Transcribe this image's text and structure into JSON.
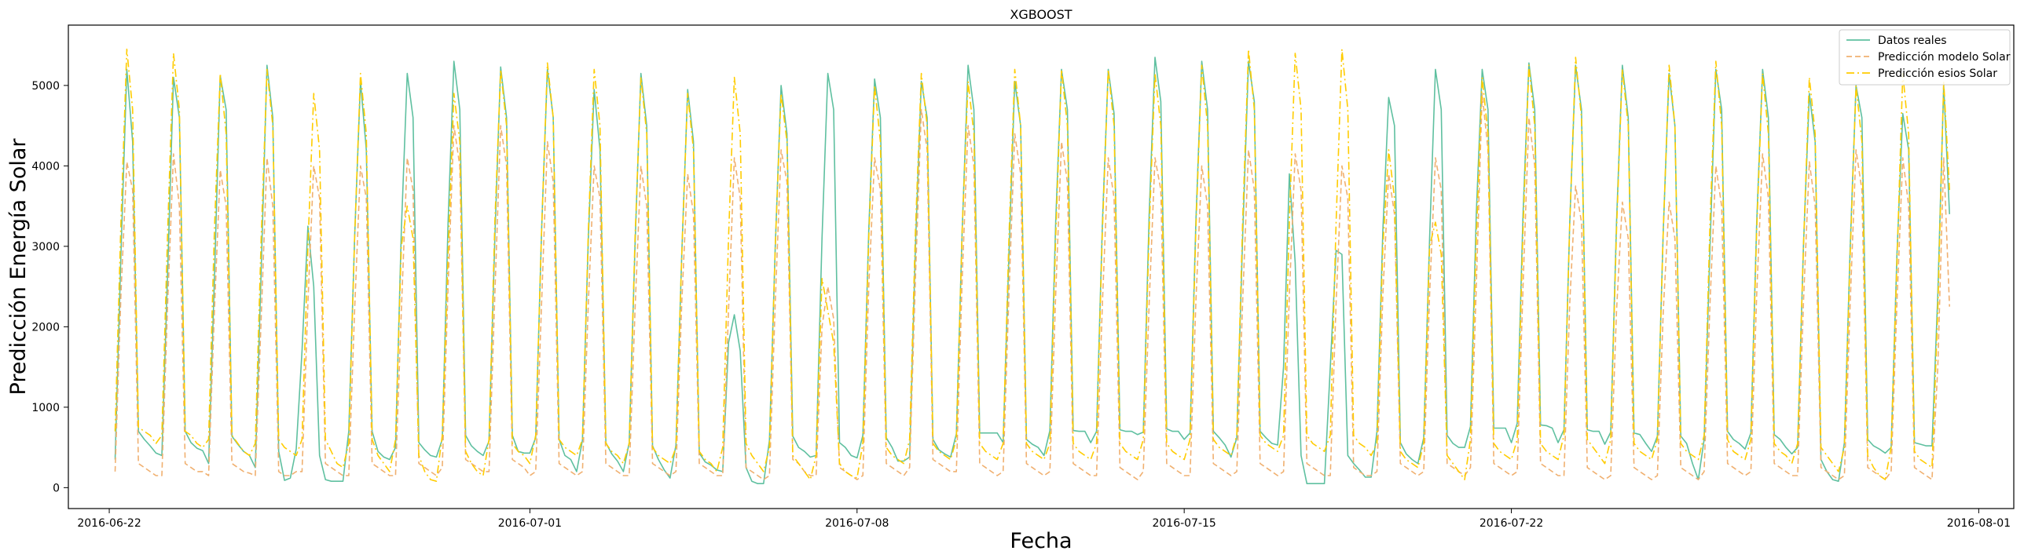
{
  "chart_data": {
    "type": "line",
    "title": "XGBOOST",
    "xlabel": "Fecha",
    "ylabel": "Predicción Energía Solar",
    "x_start": "2016-06-22T03:00",
    "x_step_hours": 3,
    "x_ticks": [
      "2016-06-22",
      "2016-07-01",
      "2016-07-08",
      "2016-07-15",
      "2016-07-22",
      "2016-08-01"
    ],
    "xlim": [
      "2016-06-21T03:00",
      "2016-08-01T18:00"
    ],
    "ylim": [
      -260,
      5750
    ],
    "y_ticks": [
      0,
      1000,
      2000,
      3000,
      4000,
      5000
    ],
    "legend_position": "top-right",
    "grid": false,
    "series": [
      {
        "name": "Datos reales",
        "color": "#5fc0a0",
        "dash": "solid",
        "values": [
          350,
          2900,
          5200,
          4300,
          700,
          600,
          520,
          430,
          400,
          2700,
          5100,
          4600,
          700,
          560,
          490,
          460,
          300,
          2600,
          5120,
          4700,
          640,
          540,
          450,
          400,
          250,
          2700,
          5250,
          4600,
          450,
          90,
          120,
          480,
          1700,
          3250,
          2500,
          400,
          100,
          80,
          80,
          80,
          700,
          3100,
          5050,
          4200,
          700,
          450,
          380,
          350,
          500,
          3200,
          5150,
          4600,
          560,
          470,
          400,
          380,
          600,
          3300,
          5300,
          4700,
          650,
          520,
          450,
          400,
          580,
          3100,
          5230,
          4600,
          650,
          450,
          430,
          430,
          620,
          3200,
          5200,
          4600,
          600,
          400,
          350,
          200,
          590,
          3100,
          4950,
          4200,
          560,
          420,
          330,
          200,
          560,
          3000,
          5150,
          4500,
          520,
          350,
          220,
          120,
          530,
          2900,
          4950,
          4300,
          430,
          320,
          280,
          220,
          200,
          1800,
          2150,
          1700,
          250,
          80,
          50,
          50,
          590,
          3000,
          5000,
          4400,
          640,
          500,
          450,
          380,
          400,
          3100,
          5150,
          4700,
          560,
          500,
          400,
          370,
          650,
          3200,
          5080,
          4600,
          620,
          500,
          330,
          330,
          380,
          3000,
          5050,
          4600,
          600,
          470,
          420,
          380,
          670,
          3200,
          5250,
          4700,
          680,
          680,
          680,
          680,
          560,
          2900,
          5050,
          4500,
          600,
          540,
          500,
          400,
          710,
          3300,
          5200,
          4700,
          710,
          700,
          700,
          560,
          700,
          3300,
          5200,
          4650,
          720,
          700,
          700,
          660,
          690,
          3400,
          5350,
          4800,
          730,
          700,
          700,
          600,
          680,
          3300,
          5300,
          4700,
          700,
          620,
          530,
          380,
          620,
          3100,
          5300,
          4800,
          700,
          620,
          550,
          530,
          1500,
          3900,
          2800,
          400,
          50,
          50,
          50,
          50,
          1500,
          2950,
          2900,
          400,
          300,
          220,
          130,
          130,
          700,
          3200,
          4850,
          4500,
          560,
          420,
          350,
          300,
          620,
          3100,
          5200,
          4700,
          650,
          550,
          500,
          500,
          760,
          3400,
          5200,
          4700,
          740,
          740,
          740,
          560,
          800,
          3400,
          5280,
          4700,
          780,
          770,
          740,
          560,
          720,
          3300,
          5250,
          4700,
          720,
          700,
          700,
          540,
          690,
          3300,
          5250,
          4600,
          680,
          660,
          550,
          450,
          640,
          3200,
          5150,
          4500,
          640,
          550,
          300,
          100,
          600,
          3000,
          5200,
          4700,
          700,
          600,
          550,
          480,
          680,
          3300,
          5200,
          4600,
          660,
          600,
          500,
          420,
          500,
          3000,
          4900,
          4300,
          350,
          200,
          100,
          80,
          560,
          3000,
          5000,
          4600,
          600,
          520,
          480,
          430,
          500,
          2900,
          4650,
          4200,
          560,
          540,
          520,
          520,
          2400,
          5000,
          3400
        ]
      },
      {
        "name": "Predicción modelo Solar",
        "color": "#f0b070",
        "dash": "dashed",
        "values": [
          200,
          2400,
          4050,
          3700,
          300,
          250,
          200,
          150,
          150,
          2300,
          4150,
          3500,
          300,
          250,
          200,
          200,
          150,
          2200,
          3950,
          3500,
          300,
          250,
          200,
          180,
          150,
          2100,
          4100,
          3500,
          200,
          150,
          150,
          200,
          200,
          2300,
          4000,
          3600,
          300,
          250,
          200,
          150,
          150,
          2200,
          4000,
          3600,
          300,
          250,
          200,
          150,
          150,
          2200,
          4100,
          3700,
          300,
          250,
          200,
          150,
          250,
          2500,
          4500,
          4000,
          350,
          300,
          250,
          200,
          200,
          2400,
          4500,
          4000,
          350,
          300,
          250,
          150,
          200,
          2300,
          4300,
          3800,
          300,
          250,
          200,
          150,
          200,
          2300,
          4000,
          3600,
          300,
          250,
          200,
          150,
          150,
          2200,
          4000,
          3500,
          300,
          250,
          200,
          150,
          200,
          2300,
          3900,
          3400,
          300,
          250,
          200,
          150,
          150,
          2200,
          4100,
          3600,
          250,
          200,
          150,
          100,
          150,
          2300,
          4200,
          3800,
          350,
          300,
          200,
          150,
          150,
          2000,
          2500,
          2100,
          250,
          200,
          150,
          100,
          150,
          2500,
          4100,
          3700,
          300,
          250,
          200,
          150,
          250,
          2600,
          4700,
          4200,
          350,
          300,
          250,
          200,
          200,
          2600,
          4500,
          4000,
          300,
          250,
          200,
          150,
          200,
          2400,
          4400,
          3900,
          300,
          250,
          200,
          150,
          200,
          2400,
          4300,
          3800,
          300,
          250,
          200,
          150,
          150,
          2300,
          4100,
          3600,
          250,
          200,
          150,
          100,
          200,
          2300,
          4100,
          3700,
          300,
          250,
          200,
          150,
          150,
          2300,
          4000,
          3500,
          300,
          250,
          200,
          150,
          200,
          2300,
          4200,
          3700,
          300,
          250,
          200,
          150,
          200,
          2400,
          4150,
          3700,
          300,
          250,
          200,
          150,
          150,
          2300,
          4000,
          3600,
          250,
          200,
          150,
          150,
          200,
          2400,
          3900,
          3400,
          300,
          250,
          200,
          150,
          200,
          2400,
          4100,
          3700,
          300,
          250,
          200,
          150,
          250,
          2500,
          4900,
          4200,
          300,
          250,
          200,
          150,
          200,
          2500,
          4600,
          4000,
          300,
          250,
          200,
          150,
          150,
          2300,
          3750,
          3300,
          250,
          200,
          150,
          100,
          150,
          2200,
          3550,
          3100,
          250,
          200,
          150,
          100,
          150,
          2200,
          3550,
          3100,
          250,
          200,
          150,
          100,
          200,
          2300,
          4000,
          3500,
          300,
          250,
          200,
          150,
          200,
          2400,
          4150,
          3600,
          300,
          250,
          200,
          150,
          150,
          2300,
          4050,
          3500,
          250,
          200,
          150,
          100,
          150,
          2300,
          4200,
          3700,
          250,
          200,
          150,
          100,
          200,
          2300,
          4100,
          3500,
          250,
          200,
          150,
          100,
          1500,
          4100,
          2250
        ]
      },
      {
        "name": "Predicción esios Solar",
        "color": "#ffcc00",
        "dash": "dashdot",
        "values": [
          700,
          3300,
          5450,
          4700,
          750,
          700,
          650,
          550,
          650,
          3200,
          5400,
          4700,
          700,
          650,
          550,
          500,
          600,
          3200,
          5150,
          4400,
          650,
          550,
          450,
          400,
          550,
          3100,
          5200,
          4500,
          600,
          500,
          450,
          400,
          600,
          3000,
          4900,
          4200,
          600,
          450,
          300,
          250,
          550,
          3100,
          5150,
          4400,
          600,
          400,
          300,
          200,
          600,
          3000,
          3500,
          3100,
          400,
          200,
          100,
          80,
          650,
          2900,
          4900,
          4300,
          450,
          300,
          200,
          150,
          600,
          3300,
          5200,
          4500,
          550,
          450,
          400,
          300,
          650,
          3200,
          5280,
          4600,
          600,
          500,
          450,
          400,
          600,
          3200,
          5200,
          4500,
          550,
          450,
          400,
          300,
          550,
          3100,
          5100,
          4400,
          500,
          400,
          350,
          300,
          500,
          2900,
          4900,
          4200,
          450,
          350,
          300,
          200,
          500,
          3100,
          5100,
          4400,
          550,
          400,
          300,
          200,
          500,
          3000,
          4900,
          4300,
          400,
          300,
          200,
          100,
          400,
          2600,
          2200,
          1800,
          300,
          200,
          150,
          120,
          550,
          3100,
          5000,
          4300,
          500,
          400,
          350,
          300,
          600,
          3200,
          5150,
          4500,
          550,
          450,
          400,
          350,
          600,
          3200,
          5050,
          4400,
          550,
          450,
          400,
          350,
          550,
          3100,
          5200,
          4500,
          550,
          450,
          400,
          350,
          550,
          3100,
          5200,
          4500,
          550,
          450,
          400,
          350,
          550,
          3200,
          5200,
          4500,
          550,
          450,
          400,
          350,
          600,
          3200,
          5150,
          4500,
          550,
          450,
          400,
          350,
          600,
          3200,
          5250,
          4500,
          600,
          500,
          450,
          400,
          650,
          3300,
          5450,
          4700,
          650,
          550,
          500,
          450,
          650,
          3300,
          5400,
          4700,
          650,
          550,
          500,
          450,
          650,
          3300,
          5450,
          4700,
          650,
          550,
          500,
          400,
          550,
          3000,
          4200,
          3600,
          450,
          350,
          300,
          250,
          550,
          3000,
          3300,
          2900,
          400,
          300,
          200,
          100,
          600,
          3100,
          5100,
          4400,
          550,
          450,
          400,
          350,
          600,
          3200,
          5250,
          4500,
          550,
          450,
          400,
          350,
          650,
          3300,
          5350,
          4600,
          600,
          500,
          400,
          300,
          600,
          3200,
          5200,
          4500,
          550,
          450,
          400,
          350,
          600,
          3200,
          5250,
          4500,
          550,
          450,
          400,
          350,
          650,
          3300,
          5300,
          4500,
          600,
          450,
          400,
          350,
          600,
          3200,
          5150,
          4400,
          550,
          450,
          400,
          300,
          550,
          3000,
          5100,
          4400,
          500,
          400,
          300,
          200,
          500,
          2900,
          5000,
          4300,
          400,
          250,
          150,
          100,
          500,
          2800,
          5150,
          4400,
          450,
          350,
          300,
          250,
          2200,
          5050,
          3700
        ]
      }
    ]
  }
}
